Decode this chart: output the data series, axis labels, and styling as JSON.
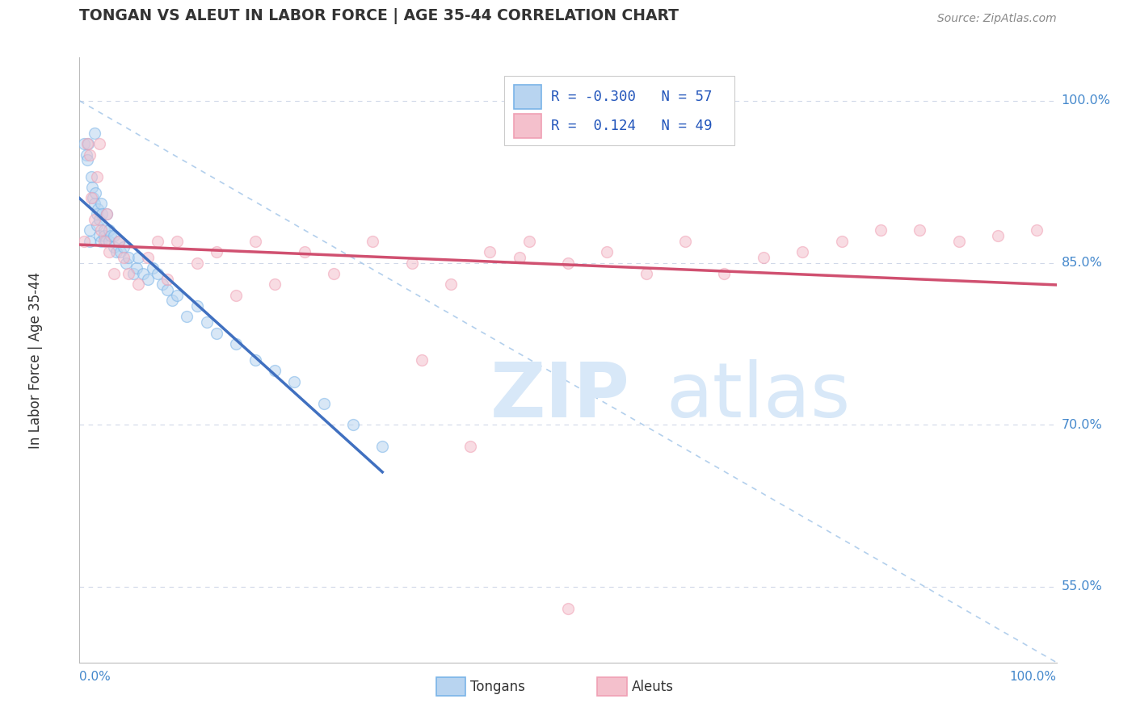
{
  "title": "TONGAN VS ALEUT IN LABOR FORCE | AGE 35-44 CORRELATION CHART",
  "source_text": "Source: ZipAtlas.com",
  "ylabel": "In Labor Force | Age 35-44",
  "y_ticks": [
    0.55,
    0.7,
    0.85,
    1.0
  ],
  "y_tick_labels": [
    "55.0%",
    "70.0%",
    "85.0%",
    "100.0%"
  ],
  "xlim": [
    0.0,
    1.0
  ],
  "ylim": [
    0.48,
    1.04
  ],
  "tongan_R": -0.3,
  "tongan_N": 57,
  "aleut_R": 0.124,
  "aleut_N": 49,
  "tongans_color": "#7ab4e8",
  "aleuts_color": "#f0a0b4",
  "tongans_color_fill": "#b8d4f0",
  "aleuts_color_fill": "#f4c0cc",
  "line_tongans_color": "#4070c0",
  "line_aleuts_color": "#d05070",
  "diagonal_color": "#a0c4e8",
  "bg_color": "#ffffff",
  "grid_color": "#d0d8e8",
  "watermark_color": "#d8e8f8",
  "dot_size": 100,
  "dot_alpha": 0.55,
  "tongans_x": [
    0.005,
    0.007,
    0.008,
    0.009,
    0.01,
    0.01,
    0.012,
    0.013,
    0.014,
    0.015,
    0.015,
    0.016,
    0.018,
    0.018,
    0.019,
    0.02,
    0.02,
    0.022,
    0.022,
    0.023,
    0.025,
    0.025,
    0.027,
    0.028,
    0.03,
    0.03,
    0.032,
    0.035,
    0.035,
    0.038,
    0.04,
    0.042,
    0.045,
    0.048,
    0.05,
    0.055,
    0.058,
    0.06,
    0.065,
    0.07,
    0.075,
    0.08,
    0.085,
    0.09,
    0.095,
    0.1,
    0.11,
    0.12,
    0.13,
    0.14,
    0.16,
    0.18,
    0.2,
    0.22,
    0.25,
    0.28,
    0.31
  ],
  "tongans_y": [
    0.96,
    0.95,
    0.945,
    0.96,
    0.87,
    0.88,
    0.93,
    0.92,
    0.91,
    0.97,
    0.905,
    0.915,
    0.895,
    0.885,
    0.9,
    0.875,
    0.89,
    0.905,
    0.87,
    0.895,
    0.88,
    0.875,
    0.87,
    0.895,
    0.88,
    0.87,
    0.875,
    0.865,
    0.875,
    0.86,
    0.87,
    0.86,
    0.865,
    0.85,
    0.855,
    0.84,
    0.845,
    0.855,
    0.84,
    0.835,
    0.845,
    0.84,
    0.83,
    0.825,
    0.815,
    0.82,
    0.8,
    0.81,
    0.795,
    0.785,
    0.775,
    0.76,
    0.75,
    0.74,
    0.72,
    0.7,
    0.68
  ],
  "aleuts_x": [
    0.005,
    0.008,
    0.01,
    0.012,
    0.015,
    0.018,
    0.02,
    0.022,
    0.025,
    0.028,
    0.03,
    0.035,
    0.04,
    0.045,
    0.05,
    0.06,
    0.07,
    0.08,
    0.09,
    0.1,
    0.12,
    0.14,
    0.16,
    0.18,
    0.2,
    0.23,
    0.26,
    0.3,
    0.34,
    0.38,
    0.42,
    0.46,
    0.5,
    0.54,
    0.58,
    0.62,
    0.66,
    0.7,
    0.74,
    0.78,
    0.82,
    0.86,
    0.9,
    0.94,
    0.98,
    0.5,
    0.4,
    0.35,
    0.45
  ],
  "aleuts_y": [
    0.87,
    0.96,
    0.95,
    0.91,
    0.89,
    0.93,
    0.96,
    0.88,
    0.87,
    0.895,
    0.86,
    0.84,
    0.87,
    0.855,
    0.84,
    0.83,
    0.855,
    0.87,
    0.835,
    0.87,
    0.85,
    0.86,
    0.82,
    0.87,
    0.83,
    0.86,
    0.84,
    0.87,
    0.85,
    0.83,
    0.86,
    0.87,
    0.85,
    0.86,
    0.84,
    0.87,
    0.84,
    0.855,
    0.86,
    0.87,
    0.88,
    0.88,
    0.87,
    0.875,
    0.88,
    0.53,
    0.68,
    0.76,
    0.855
  ]
}
